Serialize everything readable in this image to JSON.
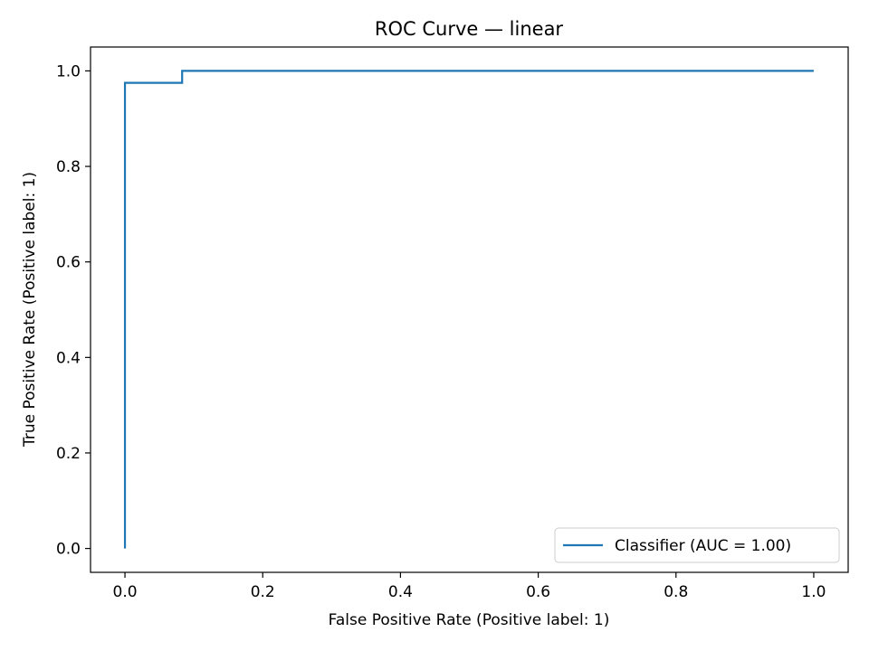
{
  "chart_data": {
    "type": "line",
    "title": "ROC Curve — linear",
    "xlabel": "False Positive Rate (Positive label: 1)",
    "ylabel": "True Positive Rate (Positive label: 1)",
    "xlim": [
      -0.05,
      1.05
    ],
    "ylim": [
      -0.05,
      1.05
    ],
    "x_ticks": [
      0.0,
      0.2,
      0.4,
      0.6,
      0.8,
      1.0
    ],
    "x_tick_labels": [
      "0.0",
      "0.2",
      "0.4",
      "0.6",
      "0.8",
      "1.0"
    ],
    "y_ticks": [
      0.0,
      0.2,
      0.4,
      0.6,
      0.8,
      1.0
    ],
    "y_tick_labels": [
      "0.0",
      "0.2",
      "0.4",
      "0.6",
      "0.8",
      "1.0"
    ],
    "grid": false,
    "legend_position": "lower-right",
    "series": [
      {
        "name": "Classifier (AUC = 1.00)",
        "color": "#1f77b4",
        "step": true,
        "x": [
          0.0,
          0.0,
          0.083,
          0.083,
          1.0
        ],
        "y": [
          0.0,
          0.975,
          0.975,
          1.0,
          1.0
        ]
      }
    ]
  }
}
